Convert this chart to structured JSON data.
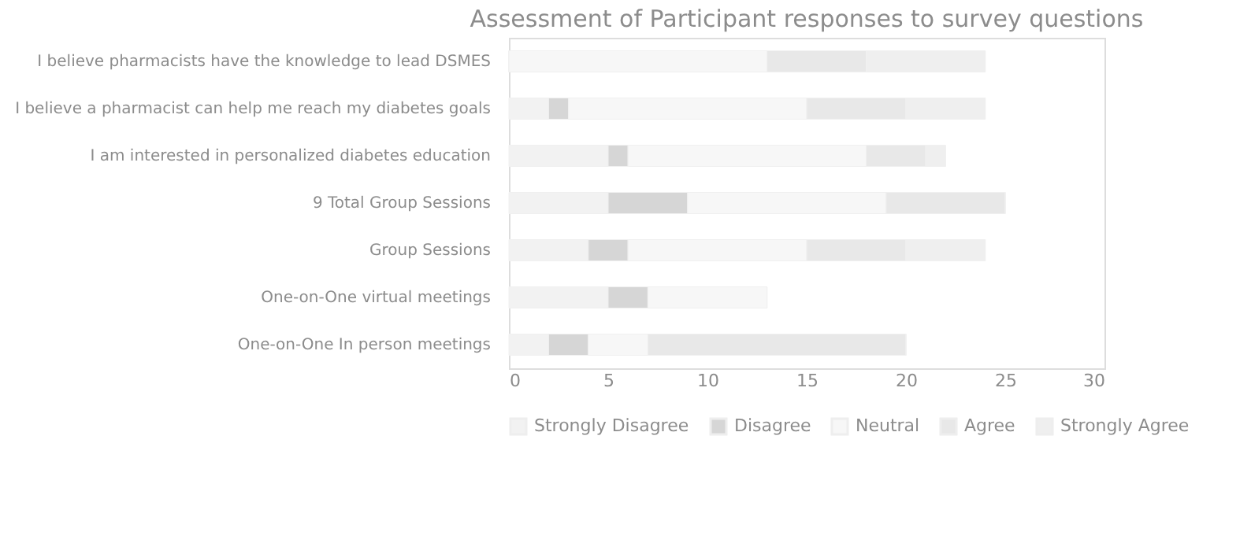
{
  "chart_data": {
    "type": "bar",
    "orientation": "horizontal",
    "stacked": true,
    "title": "Assessment of Participant responses to survey questions",
    "categories": [
      "I believe pharmacists have the knowledge to lead DSMES",
      "I believe a pharmacist can help  me reach my diabetes goals",
      "I am interested in personalized diabetes education",
      "9 Total Group Sessions",
      "Group Sessions",
      "One-on-One virtual meetings",
      "One-on-One In person meetings"
    ],
    "series": [
      {
        "name": "Strongly Disagree",
        "color": "#f2f2f2",
        "values": [
          0,
          2,
          5,
          5,
          4,
          5,
          2
        ]
      },
      {
        "name": "Disagree",
        "color": "#d6d6d6",
        "values": [
          0,
          1,
          1,
          4,
          2,
          2,
          2
        ]
      },
      {
        "name": "Neutral",
        "color": "#f7f7f7",
        "values": [
          13,
          12,
          12,
          10,
          9,
          6,
          3
        ]
      },
      {
        "name": "Agree",
        "color": "#e8e8e8",
        "values": [
          5,
          5,
          3,
          6,
          5,
          0,
          13
        ]
      },
      {
        "name": "Strongly Agree",
        "color": "#efefef",
        "values": [
          6,
          4,
          1,
          0,
          4,
          0,
          0
        ]
      }
    ],
    "xlim": [
      0,
      30
    ],
    "xticks": [
      0,
      5,
      10,
      15,
      20,
      25,
      30
    ],
    "grid": false,
    "legend": "bottom"
  }
}
